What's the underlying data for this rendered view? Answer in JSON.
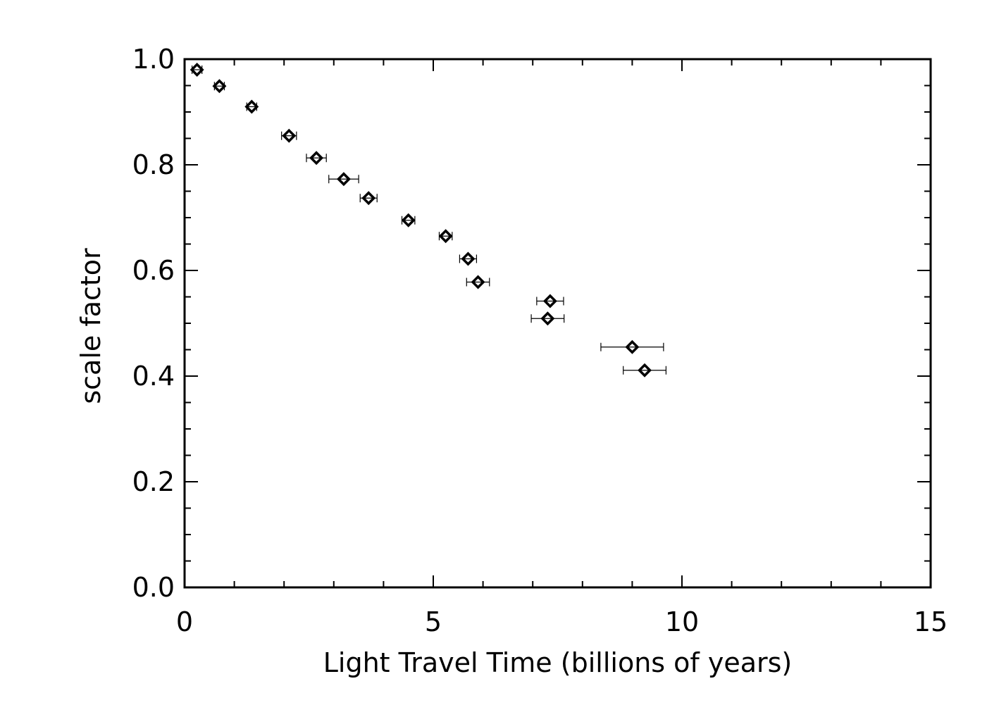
{
  "chart_data": {
    "type": "scatter",
    "xlabel": "Light Travel Time (billions of years)",
    "ylabel": "scale factor",
    "xlim": [
      0,
      15
    ],
    "ylim": [
      0,
      1.0
    ],
    "xticks": [
      0,
      5,
      10,
      15
    ],
    "xtick_labels": [
      "0",
      "5",
      "10",
      "15"
    ],
    "yticks": [
      0.0,
      0.2,
      0.4,
      0.6,
      0.8,
      1.0
    ],
    "ytick_labels": [
      "0.0",
      "0.2",
      "0.4",
      "0.6",
      "0.8",
      "1.0"
    ],
    "x_minor_step": 1,
    "y_minor_step": 0.05,
    "marker": "diamond",
    "grid": false,
    "points": [
      {
        "x": 0.25,
        "y": 0.98,
        "xerr": 0.1
      },
      {
        "x": 0.7,
        "y": 0.949,
        "xerr": 0.1
      },
      {
        "x": 1.35,
        "y": 0.91,
        "xerr": 0.1
      },
      {
        "x": 2.1,
        "y": 0.855,
        "xerr": 0.15
      },
      {
        "x": 2.65,
        "y": 0.813,
        "xerr": 0.2
      },
      {
        "x": 3.2,
        "y": 0.773,
        "xerr": 0.3
      },
      {
        "x": 3.7,
        "y": 0.737,
        "xerr": 0.17
      },
      {
        "x": 4.5,
        "y": 0.695,
        "xerr": 0.13
      },
      {
        "x": 5.25,
        "y": 0.665,
        "xerr": 0.13
      },
      {
        "x": 5.7,
        "y": 0.622,
        "xerr": 0.17
      },
      {
        "x": 5.9,
        "y": 0.578,
        "xerr": 0.23
      },
      {
        "x": 7.35,
        "y": 0.542,
        "xerr": 0.27
      },
      {
        "x": 7.3,
        "y": 0.509,
        "xerr": 0.33
      },
      {
        "x": 9.0,
        "y": 0.455,
        "xerr": 0.63
      },
      {
        "x": 9.25,
        "y": 0.411,
        "xerr": 0.43
      }
    ]
  }
}
